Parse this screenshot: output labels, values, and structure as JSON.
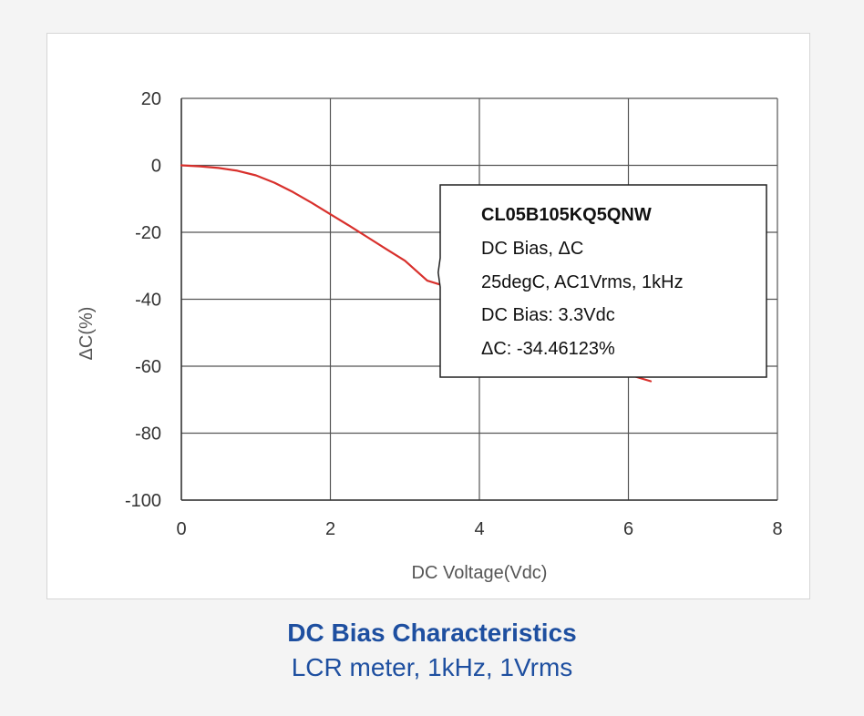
{
  "chart_data": {
    "type": "line",
    "xlabel": "DC Voltage(Vdc)",
    "ylabel": "ΔC(%)",
    "xlim": [
      0,
      8
    ],
    "ylim": [
      -100,
      20
    ],
    "x_ticks": [
      "0",
      "2",
      "4",
      "6",
      "8"
    ],
    "y_ticks": [
      "20",
      "0",
      "-20",
      "-40",
      "-60",
      "-80",
      "-100"
    ],
    "x_tick_values": [
      0,
      2,
      4,
      6,
      8
    ],
    "y_tick_values": [
      20,
      0,
      -20,
      -40,
      -60,
      -80,
      -100
    ],
    "grid": true,
    "series": [
      {
        "color": "#d8302c",
        "x": [
          0,
          0.25,
          0.5,
          0.75,
          1.0,
          1.25,
          1.5,
          1.75,
          2.0,
          2.25,
          2.5,
          2.75,
          3.0,
          3.3,
          3.5,
          4.0,
          4.5,
          5.0,
          5.5,
          6.0,
          6.3
        ],
        "y": [
          0,
          -0.3,
          -0.8,
          -1.6,
          -3.0,
          -5.2,
          -8.0,
          -11.2,
          -14.6,
          -18.0,
          -21.5,
          -25.0,
          -28.5,
          -34.46,
          -35.8,
          -42.5,
          -48.5,
          -54.0,
          -58.5,
          -62.5,
          -64.5
        ]
      }
    ],
    "tooltip": {
      "title": "CL05B105KQ5QNW",
      "line1": "DC Bias, ΔC",
      "line2": "25degC, AC1Vrms, 1kHz",
      "line3": "DC Bias: 3.3Vdc",
      "line4": "ΔC: -34.46123%",
      "anchor_x": 3.3,
      "anchor_y": -34.46123
    }
  },
  "caption": {
    "title": "DC Bias Characteristics",
    "subtitle": "LCR meter, 1kHz, 1Vrms"
  },
  "colors": {
    "caption": "#1e4fa0",
    "line": "#d8302c",
    "grid": "#555555"
  }
}
